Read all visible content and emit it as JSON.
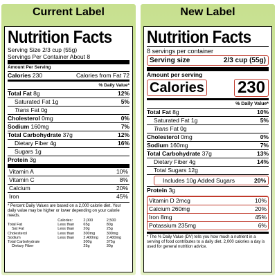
{
  "current": {
    "title": "Current Label",
    "heading": "Nutrition Facts",
    "serving_size": "Serving Size 2/3 cup (55g)",
    "servings": "Servings Per Container About 8",
    "amount": "Amount Per Serving",
    "calories_label": "Calories",
    "calories_value": "230",
    "calories_fat": "Calories from Fat 72",
    "dv_header": "% Daily Value*",
    "rows": [
      {
        "label": "Total Fat",
        "amt": "8g",
        "pct": "12%",
        "bold": true,
        "indent": 0
      },
      {
        "label": "Saturated Fat",
        "amt": "1g",
        "pct": "5%",
        "bold": false,
        "indent": 1
      },
      {
        "label": "Trans",
        "amt": "Fat 0g",
        "pct": "",
        "bold": false,
        "indent": 1,
        "italic": true
      },
      {
        "label": "Cholesterol",
        "amt": "0mg",
        "pct": "0%",
        "bold": true,
        "indent": 0
      },
      {
        "label": "Sodium",
        "amt": "160mg",
        "pct": "7%",
        "bold": true,
        "indent": 0
      },
      {
        "label": "Total Carbohydrate",
        "amt": "37g",
        "pct": "12%",
        "bold": true,
        "indent": 0
      },
      {
        "label": "Dietary Fiber",
        "amt": "4g",
        "pct": "16%",
        "bold": false,
        "indent": 1
      },
      {
        "label": "Sugars",
        "amt": "1g",
        "pct": "",
        "bold": false,
        "indent": 1
      },
      {
        "label": "Protein",
        "amt": "3g",
        "pct": "",
        "bold": true,
        "indent": 0
      }
    ],
    "vitamins": [
      {
        "label": "Vitamin A",
        "pct": "10%"
      },
      {
        "label": "Vitamin C",
        "pct": "8%"
      },
      {
        "label": "Calcium",
        "pct": "20%"
      },
      {
        "label": "Iron",
        "pct": "45%"
      }
    ],
    "footnote": "* Percent Daily Values are based on a 2,000 calorie diet. Your daily value may be higher or lower depending on your calorie needs.",
    "dv_table": {
      "head": [
        "",
        "Calories:",
        "2,000",
        "2,500"
      ],
      "rows": [
        [
          "Total Fat",
          "Less than",
          "65g",
          "80g"
        ],
        [
          "Sat Fat",
          "Less than",
          "20g",
          "25g"
        ],
        [
          "Cholesterol",
          "Less than",
          "300mg",
          "300mg"
        ],
        [
          "Sodium",
          "Less than",
          "2,400mg",
          "2,400mg"
        ],
        [
          "Total Carbohydrate",
          "",
          "300g",
          "375g"
        ],
        [
          "Dietary Fiber",
          "",
          "25g",
          "30g"
        ]
      ]
    }
  },
  "new": {
    "title": "New Label",
    "heading": "Nutrition Facts",
    "servings": "8 servings per container",
    "serving_size_label": "Serving size",
    "serving_size_value": "2/3 cup (55g)",
    "amount": "Amount per serving",
    "calories_label": "Calories",
    "calories_value": "230",
    "dv_header": "% Daily Value*",
    "rows": [
      {
        "label": "Total Fat",
        "amt": "8g",
        "pct": "10%",
        "bold": true,
        "indent": 0
      },
      {
        "label": "Saturated Fat",
        "amt": "1g",
        "pct": "5%",
        "bold": false,
        "indent": 1
      },
      {
        "label": "Trans",
        "amt": "Fat 0g",
        "pct": "",
        "bold": false,
        "indent": 1,
        "italic": true
      },
      {
        "label": "Cholesterol",
        "amt": "0mg",
        "pct": "0%",
        "bold": true,
        "indent": 0
      },
      {
        "label": "Sodium",
        "amt": "160mg",
        "pct": "7%",
        "bold": true,
        "indent": 0
      },
      {
        "label": "Total Carbohydrate",
        "amt": "37g",
        "pct": "13%",
        "bold": true,
        "indent": 0
      },
      {
        "label": "Dietary Fiber",
        "amt": "4g",
        "pct": "14%",
        "bold": false,
        "indent": 1
      },
      {
        "label": "Total Sugars",
        "amt": "12g",
        "pct": "",
        "bold": false,
        "indent": 1
      }
    ],
    "added_sugars": {
      "label": "Includes 10g Added Sugars",
      "pct": "20%"
    },
    "protein": {
      "label": "Protein",
      "amt": "3g"
    },
    "vitamins": [
      {
        "label": "Vitamin D 2mcg",
        "pct": "10%"
      },
      {
        "label": "Calcium 260mg",
        "pct": "20%"
      },
      {
        "label": "Iron 8mg",
        "pct": "45%"
      },
      {
        "label": "Potassium 235mg",
        "pct": "6%"
      }
    ],
    "footnote": "* The % Daily Value (DV) tells you how much a nutrient in a serving of food contributes to a daily diet. 2,000 calories a day is used for general nutrition advice.",
    "highlight_color": "#c0392b"
  }
}
